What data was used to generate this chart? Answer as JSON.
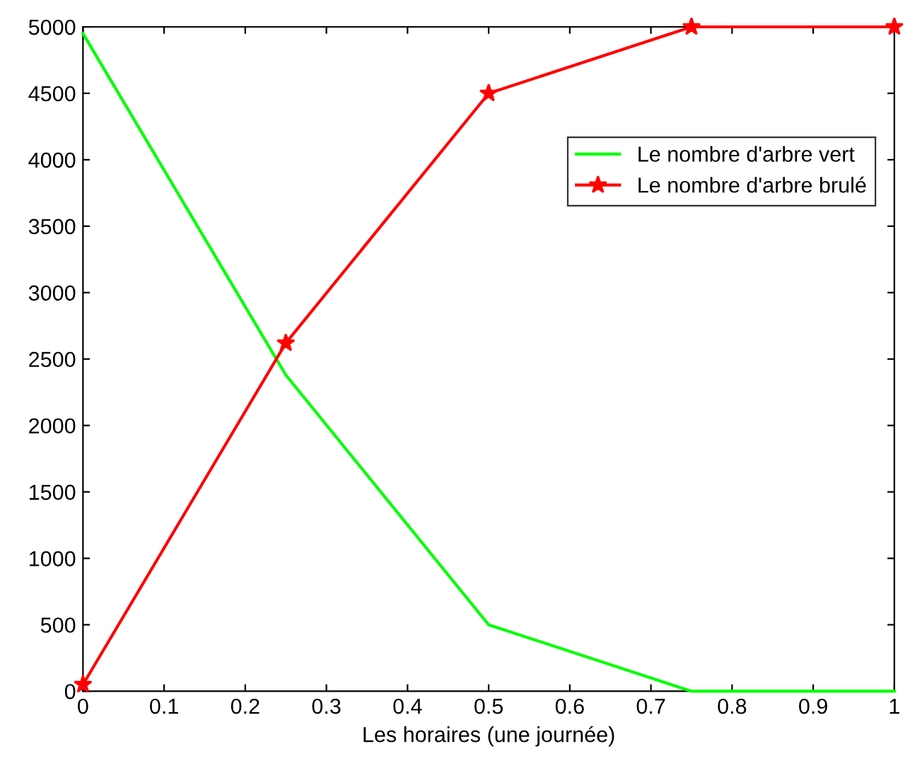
{
  "chart_data": {
    "type": "line",
    "xlabel": "Les horaires (une journée)",
    "x": [
      0,
      0.25,
      0.5,
      0.75,
      1
    ],
    "xlim": [
      0,
      1
    ],
    "xticks": [
      0,
      0.1,
      0.2,
      0.3,
      0.4,
      0.5,
      0.6,
      0.7,
      0.8,
      0.9,
      1
    ],
    "ylim": [
      0,
      5000
    ],
    "yticks": [
      0,
      500,
      1000,
      1500,
      2000,
      2500,
      3000,
      3500,
      4000,
      4500,
      5000
    ],
    "grid": false,
    "legend": "top right",
    "line_style": "solid",
    "series": [
      {
        "name": "Le nombre d'arbre vert",
        "color": "#00ff00",
        "values": [
          4950,
          2380,
          500,
          0,
          0
        ],
        "marker": "none"
      },
      {
        "name": "Le nombre d'arbre brulé",
        "color": "#ff0000",
        "values": [
          50,
          2620,
          4500,
          5000,
          5000
        ],
        "marker": "star"
      }
    ]
  }
}
